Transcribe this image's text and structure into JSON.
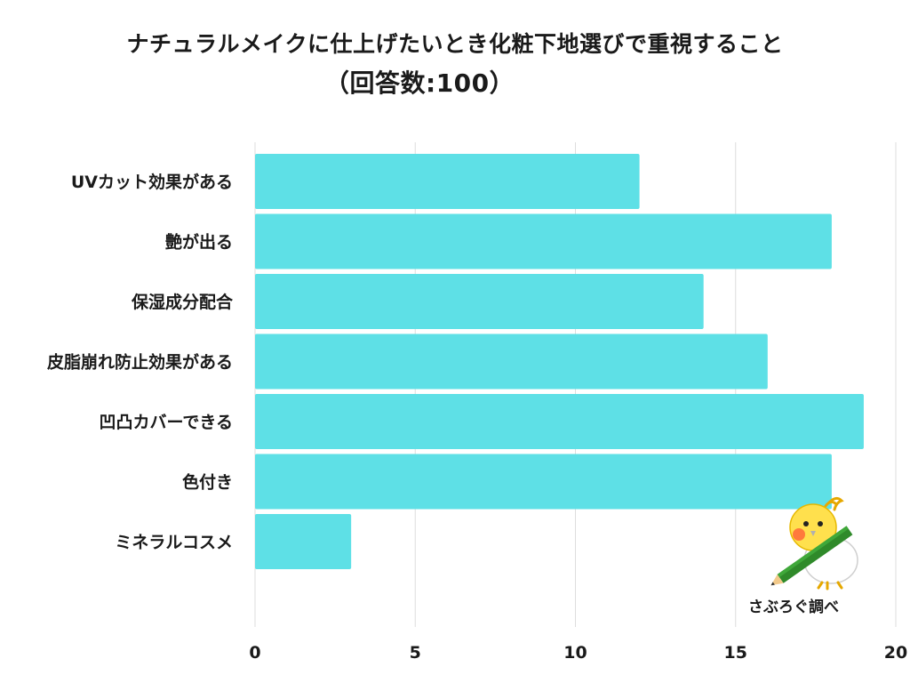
{
  "header": {
    "title_line1": "ナチュラルメイクに仕上げたいとき化粧下地選びで重視すること",
    "title_line2": "（回答数:100）"
  },
  "credit": "さぶろぐ調べ",
  "colors": {
    "bar": "#5ee0e6",
    "grid": "#dddddd",
    "text": "#1a1a1a"
  },
  "chart_data": {
    "type": "bar",
    "orientation": "horizontal",
    "categories": [
      "UVカット効果がある",
      "艶が出る",
      "保湿成分配合",
      "皮脂崩れ防止効果がある",
      "凹凸カバーできる",
      "色付き",
      "ミネラルコスメ"
    ],
    "values": [
      12,
      18,
      14,
      16,
      19,
      18,
      3
    ],
    "xlim": [
      0,
      20
    ],
    "xticks": [
      0,
      5,
      10,
      15,
      20
    ],
    "grid": true,
    "legend": "none"
  }
}
